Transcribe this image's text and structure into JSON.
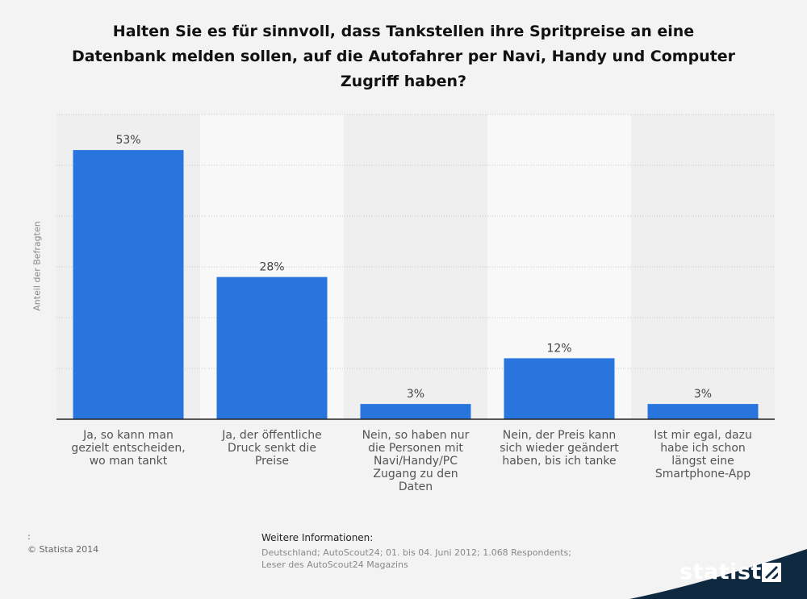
{
  "title_lines": [
    "Halten Sie es für sinnvoll, dass Tankstellen ihre Spritpreise an eine",
    "Datenbank melden sollen, auf die Autofahrer per Navi, Handy und Computer",
    "Zugriff haben?"
  ],
  "chart_data": {
    "type": "bar",
    "title": "Halten Sie es für sinnvoll, dass Tankstellen ihre Spritpreise an eine Datenbank melden sollen, auf die Autofahrer per Navi, Handy und Computer Zugriff haben?",
    "ylabel": "Anteil der Befragten",
    "xlabel": "",
    "categories": [
      "Ja, so kann man gezielt entscheiden, wo man tankt",
      "Ja, der öffentliche Druck senkt die Preise",
      "Nein, so haben nur die Personen mit Navi/Handy/PC Zugang zu den Daten",
      "Nein, der Preis kann sich wieder geändert haben, bis ich tanke",
      "Ist mir egal, dazu habe ich schon längst eine Smartphone-App"
    ],
    "values": [
      53,
      28,
      3,
      12,
      3
    ],
    "value_labels": [
      "53%",
      "28%",
      "3%",
      "12%",
      "3%"
    ],
    "unit": "%",
    "ylim": [
      0,
      60
    ],
    "grid": true,
    "bar_color": "#2876dd"
  },
  "category_label_lines": [
    [
      "Ja, so kann man",
      "gezielt entscheiden,",
      "wo man tankt"
    ],
    [
      "Ja, der öffentliche",
      "Druck senkt die",
      "Preise"
    ],
    [
      "Nein, so haben nur",
      "die Personen mit",
      "Navi/Handy/PC",
      "Zugang zu den",
      "Daten"
    ],
    [
      "Nein, der Preis kann",
      "sich wieder geändert",
      "haben, bis ich tanke"
    ],
    [
      "Ist mir egal, dazu",
      "habe ich schon",
      "längst eine",
      "Smartphone-App"
    ]
  ],
  "footer": {
    "colon": ":",
    "copyright": "© Statista 2014",
    "info_heading": "Weitere Informationen:",
    "info_lines": [
      "Deutschland; AutoScout24; 01. bis 04. Juni 2012; 1.068 Respondents;",
      "Leser des AutoScout24 Magazins"
    ]
  },
  "brand": {
    "name": "statista",
    "band_color": "#0f2a40"
  }
}
